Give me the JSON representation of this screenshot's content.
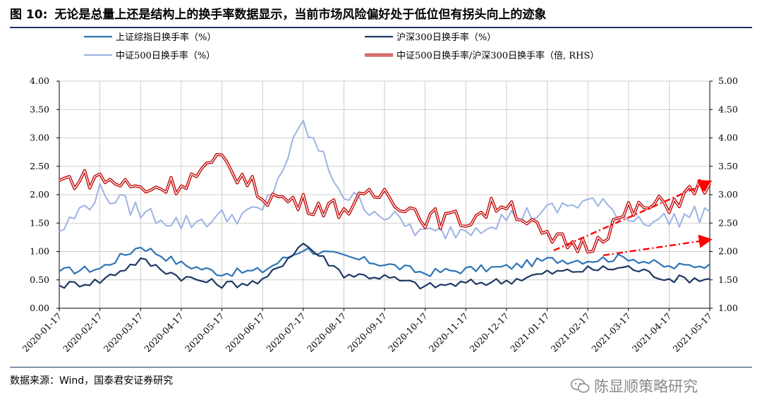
{
  "header": {
    "figure_no": "图 10:",
    "title": "无论是总量上还是结构上的换手率数据显示，当前市场风险偏好处于低位但有拐头向上的迹象"
  },
  "footer": {
    "source": "数据来源：Wind，国泰君安证券研究",
    "watermark": "陈显顺策略研究",
    "watermark_icon": "wechat-icon"
  },
  "colors": {
    "sh_composite": "#2e75b6",
    "hs300": "#1f3864",
    "zz500": "#9db3e3",
    "ratio": "#c00000",
    "ratio_core": "#ffffff",
    "arrow": "#ff0000",
    "grid": "#bfbfbf"
  },
  "chart_data": {
    "type": "line",
    "dates": [
      "2020-01-17",
      "2020-02-17",
      "2020-03-17",
      "2020-04-17",
      "2020-05-17",
      "2020-06-17",
      "2020-07-17",
      "2020-08-17",
      "2020-09-17",
      "2020-10-17",
      "2020-11-17",
      "2020-12-17",
      "2021-01-17",
      "2021-02-17",
      "2021-03-17",
      "2021-04-17",
      "2021-05-17"
    ],
    "left_axis": {
      "min": 0,
      "max": 4,
      "ticks": [
        "0.00",
        "0.50",
        "1.00",
        "1.50",
        "2.00",
        "2.50",
        "3.00",
        "3.50",
        "4.00"
      ]
    },
    "right_axis": {
      "min": 1,
      "max": 5,
      "ticks": [
        "1.00",
        "1.50",
        "2.00",
        "2.50",
        "3.00",
        "3.50",
        "4.00",
        "4.50",
        "5.00"
      ]
    },
    "grid": true,
    "legend_position": "top",
    "series": [
      {
        "name": "上证综指日换手率（%）",
        "axis": "left",
        "style": "solid",
        "values": [
          0.65,
          0.7,
          1.1,
          0.78,
          0.62,
          0.66,
          1.05,
          0.9,
          0.78,
          0.62,
          0.68,
          0.72,
          0.85,
          0.85,
          0.9,
          0.72,
          0.78
        ]
      },
      {
        "name": "沪深300日换手率（%）",
        "axis": "left",
        "style": "solid",
        "values": [
          0.4,
          0.48,
          0.85,
          0.55,
          0.42,
          0.46,
          1.15,
          0.6,
          0.55,
          0.38,
          0.44,
          0.48,
          0.62,
          0.68,
          0.72,
          0.52,
          0.52
        ]
      },
      {
        "name": "中证500日换手率（%）",
        "axis": "left",
        "style": "solid",
        "values": [
          1.35,
          2.05,
          1.7,
          1.5,
          1.6,
          1.7,
          3.25,
          2.0,
          1.65,
          1.3,
          1.4,
          1.6,
          1.7,
          1.9,
          1.6,
          1.55,
          1.7
        ]
      },
      {
        "name": "中证500日换手率/沪深300日换手率（倍, RHS）",
        "axis": "right",
        "style": "double",
        "values": [
          3.25,
          3.3,
          3.1,
          3.2,
          3.6,
          3.0,
          2.85,
          2.75,
          3.05,
          2.6,
          2.55,
          2.9,
          2.2,
          2.1,
          2.7,
          2.85,
          3.2
        ]
      }
    ]
  }
}
